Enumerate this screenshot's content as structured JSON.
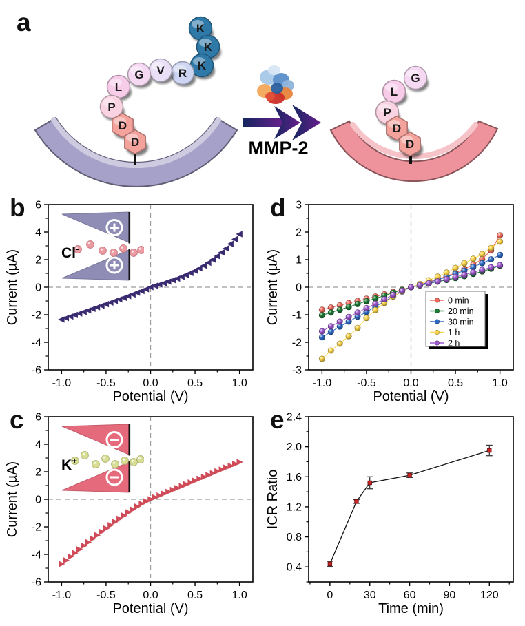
{
  "figure_bg": "#ffffff",
  "panels": {
    "a": {
      "label": "a",
      "enzyme_label": "MMP-2",
      "left_peptide": [
        "D",
        "D",
        "P",
        "L",
        "G",
        "V",
        "R",
        "K",
        "K",
        "K"
      ],
      "right_peptide": [
        "D",
        "D",
        "P",
        "L",
        "G"
      ],
      "bead_colors": {
        "D": "#f4a29c",
        "P": "#f9d3e2",
        "L": "#f6cce9",
        "G": "#f5d9f2",
        "V": "#e9e0f8",
        "R": "#cdd5f2",
        "K": "#2f79a9"
      },
      "left_membrane_color": "#a5a1c9",
      "right_membrane_color": "#ee929b"
    },
    "b": {
      "label": "b"
    },
    "c": {
      "label": "c"
    },
    "d": {
      "label": "d"
    },
    "e": {
      "label": "e"
    }
  },
  "chart_data": [
    {
      "id": "b",
      "type": "scatter",
      "xlabel": "Potential (V)",
      "ylabel": "Current (µA)",
      "xlim": [
        -1.15,
        1.15
      ],
      "ylim": [
        -6,
        6
      ],
      "xticks": [
        -1.0,
        -0.5,
        0.0,
        0.5,
        1.0
      ],
      "xtick_labels": [
        "-1.0",
        "-0.5",
        "0.0",
        "0.5",
        "1.0"
      ],
      "yticks": [
        -6,
        -4,
        -2,
        0,
        2,
        4,
        6
      ],
      "ytick_labels": [
        "-6",
        "-4",
        "-2",
        "0",
        "2",
        "4",
        "6"
      ],
      "xminor_step": 0.25,
      "yminor_step": 1,
      "zero_lines": true,
      "legend": false,
      "series": [
        {
          "name": "Cl- current",
          "color": "#3a2a70",
          "marker": "triangle-left",
          "x": [
            -1,
            -0.95,
            -0.9,
            -0.85,
            -0.8,
            -0.75,
            -0.7,
            -0.65,
            -0.6,
            -0.55,
            -0.5,
            -0.45,
            -0.4,
            -0.35,
            -0.3,
            -0.25,
            -0.2,
            -0.15,
            -0.1,
            -0.05,
            0,
            0.05,
            0.1,
            0.15,
            0.2,
            0.25,
            0.3,
            0.35,
            0.4,
            0.45,
            0.5,
            0.55,
            0.6,
            0.65,
            0.7,
            0.75,
            0.8,
            0.85,
            0.9,
            0.95,
            1
          ],
          "y": [
            -2.35,
            -2.24,
            -2.13,
            -2.02,
            -1.91,
            -1.8,
            -1.69,
            -1.57,
            -1.46,
            -1.35,
            -1.23,
            -1.12,
            -1.0,
            -0.89,
            -0.77,
            -0.65,
            -0.53,
            -0.4,
            -0.28,
            -0.15,
            0,
            0.1,
            0.19,
            0.29,
            0.4,
            0.51,
            0.62,
            0.75,
            0.88,
            1.03,
            1.19,
            1.37,
            1.56,
            1.77,
            2.0,
            2.25,
            2.52,
            2.81,
            3.13,
            3.48,
            3.85
          ]
        }
      ],
      "inset": {
        "ion": "Cl",
        "ion_charge": "-",
        "wall_charge": "+",
        "wedge_color": "#8f8cb6",
        "ion_color": "#ec9ba2",
        "ion_stroke": "#c4737b"
      }
    },
    {
      "id": "c",
      "type": "scatter",
      "xlabel": "Potential (V)",
      "ylabel": "Current (µA)",
      "xlim": [
        -1.15,
        1.15
      ],
      "ylim": [
        -6,
        6
      ],
      "xticks": [
        -1.0,
        -0.5,
        0.0,
        0.5,
        1.0
      ],
      "xtick_labels": [
        "-1.0",
        "-0.5",
        "0.0",
        "0.5",
        "1.0"
      ],
      "yticks": [
        -6,
        -4,
        -2,
        0,
        2,
        4,
        6
      ],
      "ytick_labels": [
        "-6",
        "-4",
        "-2",
        "0",
        "2",
        "4",
        "6"
      ],
      "xminor_step": 0.25,
      "yminor_step": 1,
      "zero_lines": true,
      "legend": false,
      "series": [
        {
          "name": "K+ current",
          "color": "#cf4b57",
          "marker": "triangle-right",
          "x": [
            -1,
            -0.95,
            -0.9,
            -0.85,
            -0.8,
            -0.75,
            -0.7,
            -0.65,
            -0.6,
            -0.55,
            -0.5,
            -0.45,
            -0.4,
            -0.35,
            -0.3,
            -0.25,
            -0.2,
            -0.15,
            -0.1,
            -0.05,
            0,
            0.05,
            0.1,
            0.15,
            0.2,
            0.25,
            0.3,
            0.35,
            0.4,
            0.45,
            0.5,
            0.55,
            0.6,
            0.65,
            0.7,
            0.75,
            0.8,
            0.85,
            0.9,
            0.95,
            1
          ],
          "y": [
            -4.7,
            -4.43,
            -4.16,
            -3.9,
            -3.64,
            -3.38,
            -3.12,
            -2.86,
            -2.61,
            -2.36,
            -2.12,
            -1.88,
            -1.64,
            -1.41,
            -1.18,
            -0.95,
            -0.74,
            -0.53,
            -0.33,
            -0.15,
            0,
            0.14,
            0.27,
            0.41,
            0.54,
            0.68,
            0.81,
            0.95,
            1.08,
            1.22,
            1.35,
            1.49,
            1.62,
            1.76,
            1.89,
            2.03,
            2.16,
            2.3,
            2.43,
            2.57,
            2.7
          ]
        }
      ],
      "inset": {
        "ion": "K",
        "ion_charge": "+",
        "wall_charge": "−",
        "wedge_color": "#e56b7c",
        "ion_color": "#d9de97",
        "ion_stroke": "#aab26a"
      }
    },
    {
      "id": "d",
      "type": "scatter",
      "xlabel": "Potential (V)",
      "ylabel": "Current (µA)",
      "xlim": [
        -1.15,
        1.15
      ],
      "ylim": [
        -3,
        3
      ],
      "xticks": [
        -1.0,
        -0.5,
        0.0,
        0.5,
        1.0
      ],
      "xtick_labels": [
        "-1.0",
        "-0.5",
        "0.0",
        "0.5",
        "1.0"
      ],
      "yticks": [
        -3,
        -2,
        -1,
        0,
        1,
        2,
        3
      ],
      "ytick_labels": [
        "-3",
        "-2",
        "-1",
        "0",
        "1",
        "2",
        "3"
      ],
      "xminor_step": 0.25,
      "yminor_step": 0.5,
      "zero_lines": true,
      "legend": true,
      "series": [
        {
          "name": "0 min",
          "color": "#f26a5e",
          "marker": "sphere",
          "x": [
            -1,
            -0.9,
            -0.8,
            -0.7,
            -0.6,
            -0.5,
            -0.4,
            -0.3,
            -0.2,
            -0.1,
            0,
            0.1,
            0.2,
            0.3,
            0.4,
            0.5,
            0.6,
            0.7,
            0.8,
            0.9,
            1
          ],
          "y": [
            -0.82,
            -0.74,
            -0.66,
            -0.58,
            -0.5,
            -0.42,
            -0.34,
            -0.26,
            -0.17,
            -0.09,
            0,
            0.09,
            0.19,
            0.29,
            0.4,
            0.52,
            0.66,
            0.82,
            1.02,
            1.33,
            1.88
          ]
        },
        {
          "name": "20 min",
          "color": "#1d7b34",
          "marker": "sphere",
          "x": [
            -1,
            -0.9,
            -0.8,
            -0.7,
            -0.6,
            -0.5,
            -0.4,
            -0.3,
            -0.2,
            -0.1,
            0,
            0.1,
            0.2,
            0.3,
            0.4,
            0.5,
            0.6,
            0.7,
            0.8,
            0.9,
            1
          ],
          "y": [
            -1.02,
            -0.92,
            -0.82,
            -0.72,
            -0.61,
            -0.51,
            -0.41,
            -0.31,
            -0.2,
            -0.1,
            0,
            0.06,
            0.13,
            0.2,
            0.26,
            0.33,
            0.4,
            0.48,
            0.57,
            0.67,
            0.78
          ]
        },
        {
          "name": "30 min",
          "color": "#2f6cc6",
          "marker": "sphere",
          "x": [
            -1,
            -0.9,
            -0.8,
            -0.7,
            -0.6,
            -0.5,
            -0.4,
            -0.3,
            -0.2,
            -0.1,
            0,
            0.1,
            0.2,
            0.3,
            0.4,
            0.5,
            0.6,
            0.7,
            0.8,
            0.9,
            1
          ],
          "y": [
            -1.82,
            -1.62,
            -1.43,
            -1.25,
            -1.07,
            -0.9,
            -0.71,
            -0.52,
            -0.34,
            -0.16,
            0,
            0.08,
            0.17,
            0.27,
            0.37,
            0.48,
            0.6,
            0.73,
            0.87,
            1.01,
            1.17
          ]
        },
        {
          "name": "1 h",
          "color": "#fdd64b",
          "marker": "sphere",
          "x": [
            -1,
            -0.9,
            -0.8,
            -0.7,
            -0.6,
            -0.5,
            -0.4,
            -0.3,
            -0.2,
            -0.1,
            0,
            0.1,
            0.2,
            0.3,
            0.4,
            0.5,
            0.6,
            0.7,
            0.8,
            0.9,
            1
          ],
          "y": [
            -2.6,
            -2.3,
            -2.05,
            -1.78,
            -1.48,
            -1.12,
            -0.83,
            -0.57,
            -0.34,
            -0.15,
            0,
            0.12,
            0.25,
            0.38,
            0.53,
            0.7,
            0.87,
            1.03,
            1.2,
            1.42,
            1.65
          ]
        },
        {
          "name": "2 h",
          "color": "#9e5bd0",
          "marker": "sphere",
          "x": [
            -1,
            -0.9,
            -0.8,
            -0.7,
            -0.6,
            -0.5,
            -0.4,
            -0.3,
            -0.2,
            -0.1,
            0,
            0.1,
            0.2,
            0.3,
            0.4,
            0.5,
            0.6,
            0.7,
            0.8,
            0.9,
            1
          ],
          "y": [
            -1.6,
            -1.42,
            -1.25,
            -1.08,
            -0.92,
            -0.76,
            -0.6,
            -0.44,
            -0.28,
            -0.13,
            0,
            0.07,
            0.14,
            0.21,
            0.29,
            0.37,
            0.45,
            0.54,
            0.63,
            0.72,
            0.8
          ]
        }
      ]
    },
    {
      "id": "e",
      "type": "line-errorbar",
      "xlabel": "Time (min)",
      "ylabel": "ICR Ratio",
      "xlim": [
        -16,
        138
      ],
      "ylim": [
        0.2,
        2.4
      ],
      "xticks": [
        0,
        30,
        60,
        90,
        120
      ],
      "xtick_labels": [
        "0",
        "30",
        "60",
        "90",
        "120"
      ],
      "yticks": [
        0.4,
        0.8,
        1.2,
        1.6,
        2.0,
        2.4
      ],
      "ytick_labels": [
        "0.4",
        "0.8",
        "1.2",
        "1.6",
        "2.0",
        "2.4"
      ],
      "xminor_step": 15,
      "yminor_step": 0.2,
      "zero_lines": false,
      "legend": false,
      "series": [
        {
          "name": "ICR ratio",
          "color": "#cf2222",
          "marker": "square",
          "line_color": "#111111",
          "x": [
            0,
            20,
            30,
            60,
            120
          ],
          "y": [
            0.44,
            1.27,
            1.52,
            1.62,
            1.95
          ],
          "err": [
            0.035,
            0.025,
            0.08,
            0.03,
            0.07
          ]
        }
      ]
    }
  ]
}
